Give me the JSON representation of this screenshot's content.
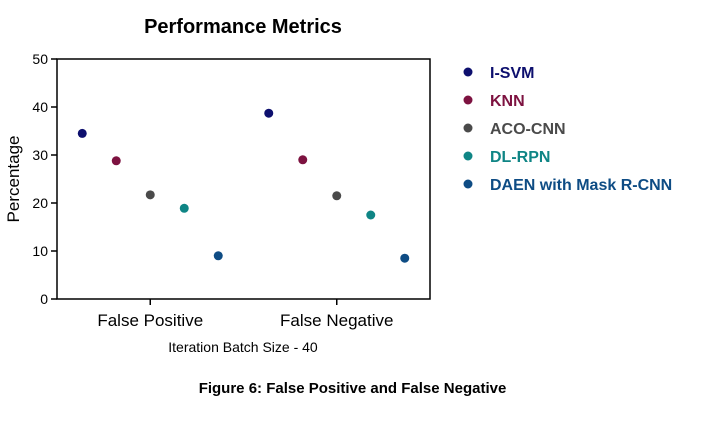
{
  "chart_data": {
    "type": "scatter",
    "title": "Performance Metrics",
    "xlabel": "Iteration Batch Size - 40",
    "ylabel": "Percentage",
    "ylim": [
      0,
      50
    ],
    "yticks": [
      0,
      10,
      20,
      30,
      40,
      50
    ],
    "categories": [
      "False Positive",
      "False Negative"
    ],
    "series": [
      {
        "name": "I-SVM",
        "color": "#0d0f6e",
        "values": [
          34.5,
          38.7
        ]
      },
      {
        "name": "KNN",
        "color": "#7d1240",
        "values": [
          28.8,
          29.0
        ]
      },
      {
        "name": "ACO-CNN",
        "color": "#4a4a4a",
        "values": [
          21.7,
          21.5
        ]
      },
      {
        "name": "DL-RPN",
        "color": "#0f8585",
        "values": [
          18.9,
          17.5
        ]
      },
      {
        "name": "DAEN with Mask R-CNN",
        "color": "#0e4c84",
        "values": [
          9.0,
          8.5
        ]
      }
    ],
    "legend_position": "right"
  },
  "caption": "Figure 6: False Positive and False Negative"
}
